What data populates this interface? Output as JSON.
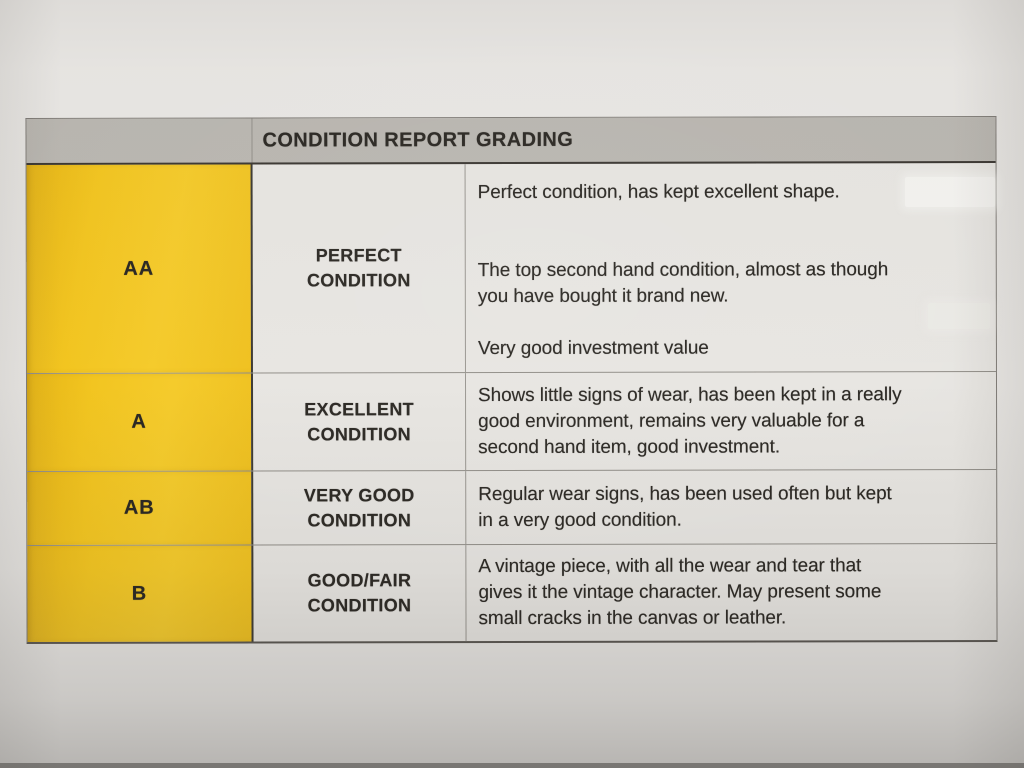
{
  "document": {
    "title": "CONDITION REPORT GRADING",
    "grades": [
      {
        "code": "AA",
        "name": "PERFECT\nCONDITION",
        "description": [
          "Perfect condition, has kept excellent shape.",
          "The top second hand condition, almost as though\nyou have bought it brand new.",
          "Very good investment value"
        ]
      },
      {
        "code": "A",
        "name": "EXCELLENT\nCONDITION",
        "description": [
          "Shows little signs of wear, has been kept in a really\ngood environment, remains very valuable for a\nsecond hand item, good investment."
        ]
      },
      {
        "code": "AB",
        "name": "VERY GOOD\nCONDITION",
        "description": [
          "Regular wear signs, has been used often but kept\nin a very good condition."
        ]
      },
      {
        "code": "B",
        "name": "GOOD/FAIR\nCONDITION",
        "description": [
          "A vintage piece, with all the wear and tear that\ngives it the vintage character. May present some\nsmall cracks in the canvas or leather."
        ]
      }
    ],
    "colors": {
      "grade_column": "#f2c41d",
      "header_bar": "#b9b6b0",
      "cell_background": "#e7e5e1",
      "paper": "#e9e7e4",
      "text": "#27241f"
    }
  }
}
